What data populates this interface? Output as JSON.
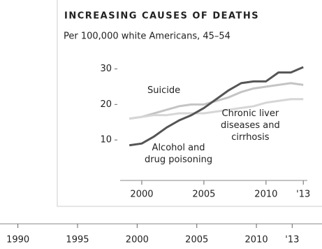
{
  "chart_data": [
    {
      "type": "line",
      "title": "INCREASING CAUSES OF DEATHS",
      "subtitle": "Per 100,000 white Americans, 45–54",
      "x": [
        1999,
        2000,
        2001,
        2002,
        2003,
        2004,
        2005,
        2006,
        2007,
        2008,
        2009,
        2010,
        2011,
        2012,
        2013
      ],
      "series": [
        {
          "name": "Suicide",
          "color": "#c4c4c4",
          "values": [
            16,
            16.5,
            17.5,
            18.5,
            19.5,
            20,
            20,
            21,
            22,
            23.5,
            24.5,
            25,
            25.5,
            26,
            25.5
          ]
        },
        {
          "name": "Chronic liver\ndiseases and\ncirrhosis",
          "color": "#d6d6d6",
          "values": [
            16,
            16.5,
            17,
            17,
            17.5,
            17.5,
            17.5,
            18,
            18.5,
            19,
            19.5,
            20.5,
            21,
            21.5,
            21.5
          ]
        },
        {
          "name": "Alcohol and\ndrug poisoning",
          "color": "#555555",
          "values": [
            8.5,
            9,
            11,
            13.5,
            15.5,
            17,
            19,
            21.5,
            24,
            26,
            26.5,
            26.5,
            29,
            29,
            30.5
          ]
        }
      ],
      "xlim": [
        1998,
        2014
      ],
      "ylim": [
        5,
        32
      ],
      "xticks": [
        2000,
        2005,
        2010,
        {
          "value": 2013,
          "label": "'13"
        }
      ],
      "yticks": [
        10,
        20,
        30
      ]
    },
    {
      "type": "axis",
      "xlim": [
        1988.5,
        2015.5
      ],
      "xticks": [
        1990,
        1995,
        2000,
        2005,
        2010,
        {
          "value": 2013,
          "label": "'13"
        }
      ]
    }
  ]
}
